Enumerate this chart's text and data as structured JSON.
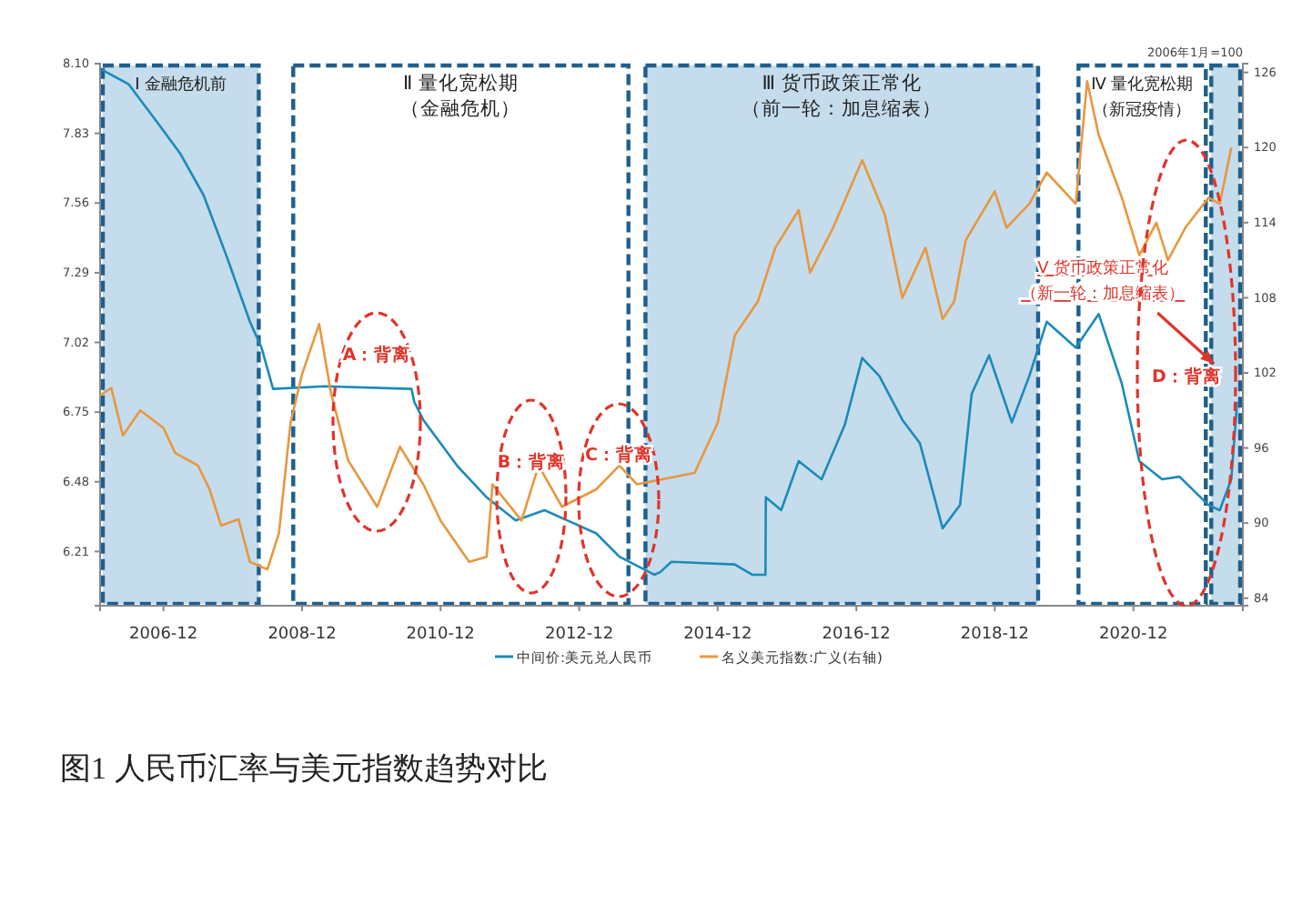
{
  "chart_data": {
    "type": "line",
    "title": "图1 人民币汇率与美元指数趋势对比",
    "y2label": "2006年1月=100",
    "xlim": [
      "2006-01",
      "2022-07"
    ],
    "xticks": [
      "2006-12",
      "2008-12",
      "2010-12",
      "2012-12",
      "2014-12",
      "2016-12",
      "2018-12",
      "2020-12"
    ],
    "ylim": [
      6.0,
      8.1
    ],
    "yticks": [
      {
        "value": 8.1,
        "label": "8.10"
      },
      7.83,
      7.56,
      7.29,
      7.02,
      6.75,
      6.48,
      6.21
    ],
    "y2lim": [
      83.4,
      126.7
    ],
    "y2ticks": [
      84,
      90,
      96,
      102,
      108,
      114,
      120,
      126
    ],
    "legend": "bottom",
    "marker": "none",
    "line_style": "solid",
    "series": [
      {
        "name": "中间价:美元兑人民币",
        "color": "#1a8bb9",
        "x": [
          "2006-01",
          "2006-06",
          "2006-11",
          "2007-03",
          "2007-07",
          "2007-11",
          "2008-03",
          "2008-05",
          "2008-07",
          "2009-04",
          "2010-07-01",
          "2010-07-15",
          "2010-09",
          "2011-03",
          "2011-08",
          "2012-01",
          "2012-06",
          "2012-10",
          "2013-03",
          "2013-07",
          "2014-01",
          "2014-02",
          "2014-04",
          "2015-03",
          "2015-06",
          "2015-08-10",
          "2015-08-12",
          "2015-11",
          "2016-02",
          "2016-06",
          "2016-10",
          "2017-01",
          "2017-04",
          "2017-08",
          "2017-11",
          "2018-03",
          "2018-06",
          "2018-08",
          "2018-11",
          "2019-03",
          "2019-06",
          "2019-09",
          "2020-02",
          "2020-06",
          "2020-10",
          "2021-01",
          "2021-05",
          "2021-08",
          "2022-01",
          "2022-03",
          "2022-05",
          "2022-06"
        ],
        "values": [
          8.08,
          8.02,
          7.87,
          7.75,
          7.59,
          7.35,
          7.1,
          7.0,
          6.84,
          6.85,
          6.84,
          6.79,
          6.72,
          6.54,
          6.42,
          6.33,
          6.37,
          6.33,
          6.28,
          6.19,
          6.12,
          6.13,
          6.17,
          6.16,
          6.12,
          6.12,
          6.42,
          6.37,
          6.56,
          6.49,
          6.7,
          6.96,
          6.89,
          6.72,
          6.63,
          6.3,
          6.39,
          6.82,
          6.97,
          6.71,
          6.89,
          7.1,
          7.0,
          7.13,
          6.86,
          6.56,
          6.49,
          6.5,
          6.39,
          6.37,
          6.49,
          6.79
        ]
      },
      {
        "name": "名义美元指数:广义(右轴)",
        "color": "#e8973f",
        "axis": "y2",
        "x": [
          "2006-01",
          "2006-03",
          "2006-05",
          "2006-08",
          "2006-12",
          "2007-02",
          "2007-06",
          "2007-08",
          "2007-10",
          "2008-01",
          "2008-03",
          "2008-06",
          "2008-08",
          "2008-10",
          "2008-12",
          "2009-03",
          "2009-05",
          "2009-08",
          "2010-01",
          "2010-05",
          "2010-09",
          "2010-12",
          "2011-05",
          "2011-08",
          "2011-09",
          "2012-02",
          "2012-05",
          "2012-09",
          "2013-03",
          "2013-07",
          "2013-10",
          "2014-08",
          "2014-12",
          "2015-03",
          "2015-07",
          "2015-10",
          "2016-02",
          "2016-04",
          "2016-08",
          "2017-01",
          "2017-05",
          "2017-08",
          "2017-12",
          "2018-03",
          "2018-05",
          "2018-07",
          "2018-12",
          "2019-02",
          "2019-06",
          "2019-09",
          "2020-02",
          "2020-04",
          "2020-06",
          "2020-10",
          "2021-01",
          "2021-04",
          "2021-06",
          "2021-09",
          "2022-01",
          "2022-03",
          "2022-05"
        ],
        "values": [
          100.2,
          100.8,
          97,
          99,
          97.6,
          95.6,
          94.6,
          92.7,
          89.8,
          90.3,
          86.9,
          86.3,
          89.2,
          98,
          101.9,
          105.9,
          100.5,
          95,
          91.3,
          96.1,
          93.1,
          90.2,
          86.9,
          87.3,
          93.1,
          90.2,
          94.6,
          91.3,
          92.7,
          94.6,
          93.1,
          94,
          98,
          105,
          107.7,
          112,
          115,
          110,
          113.6,
          119,
          114.6,
          108,
          112,
          106.3,
          107.7,
          112.6,
          116.5,
          113.6,
          115.5,
          118,
          115.5,
          125.3,
          121,
          116,
          111.4,
          114,
          111,
          113.6,
          116,
          115.5,
          120
        ]
      }
    ],
    "bands": [
      {
        "axis": "x",
        "from": "2006-01",
        "to": "2008-05",
        "label": "Ⅰ 金融危机前",
        "color": "#c5dcec"
      },
      {
        "axis": "x",
        "from": "2008-10",
        "to": "2013-09",
        "label": "Ⅱ 量化宽松期（金融危机）",
        "color": "#ffffff"
      },
      {
        "axis": "x",
        "from": "2013-11",
        "to": "2019-08",
        "label": "Ⅲ 货币政策正常化（前一轮：加息缩表）",
        "color": "#c5dcec"
      },
      {
        "axis": "x",
        "from": "2020-02",
        "to": "2022-01",
        "label": "Ⅳ 量化宽松期（新冠疫情）",
        "color": "#ffffff"
      },
      {
        "axis": "x",
        "from": "2022-01",
        "to": "2022-07",
        "label": "Ⅴ 货币政策正常化（新一轮：加息缩表）",
        "color": "#c5dcec"
      }
    ],
    "annotations": [
      "A：背离",
      "B：背离",
      "C：背离",
      "D：背离"
    ]
  }
}
